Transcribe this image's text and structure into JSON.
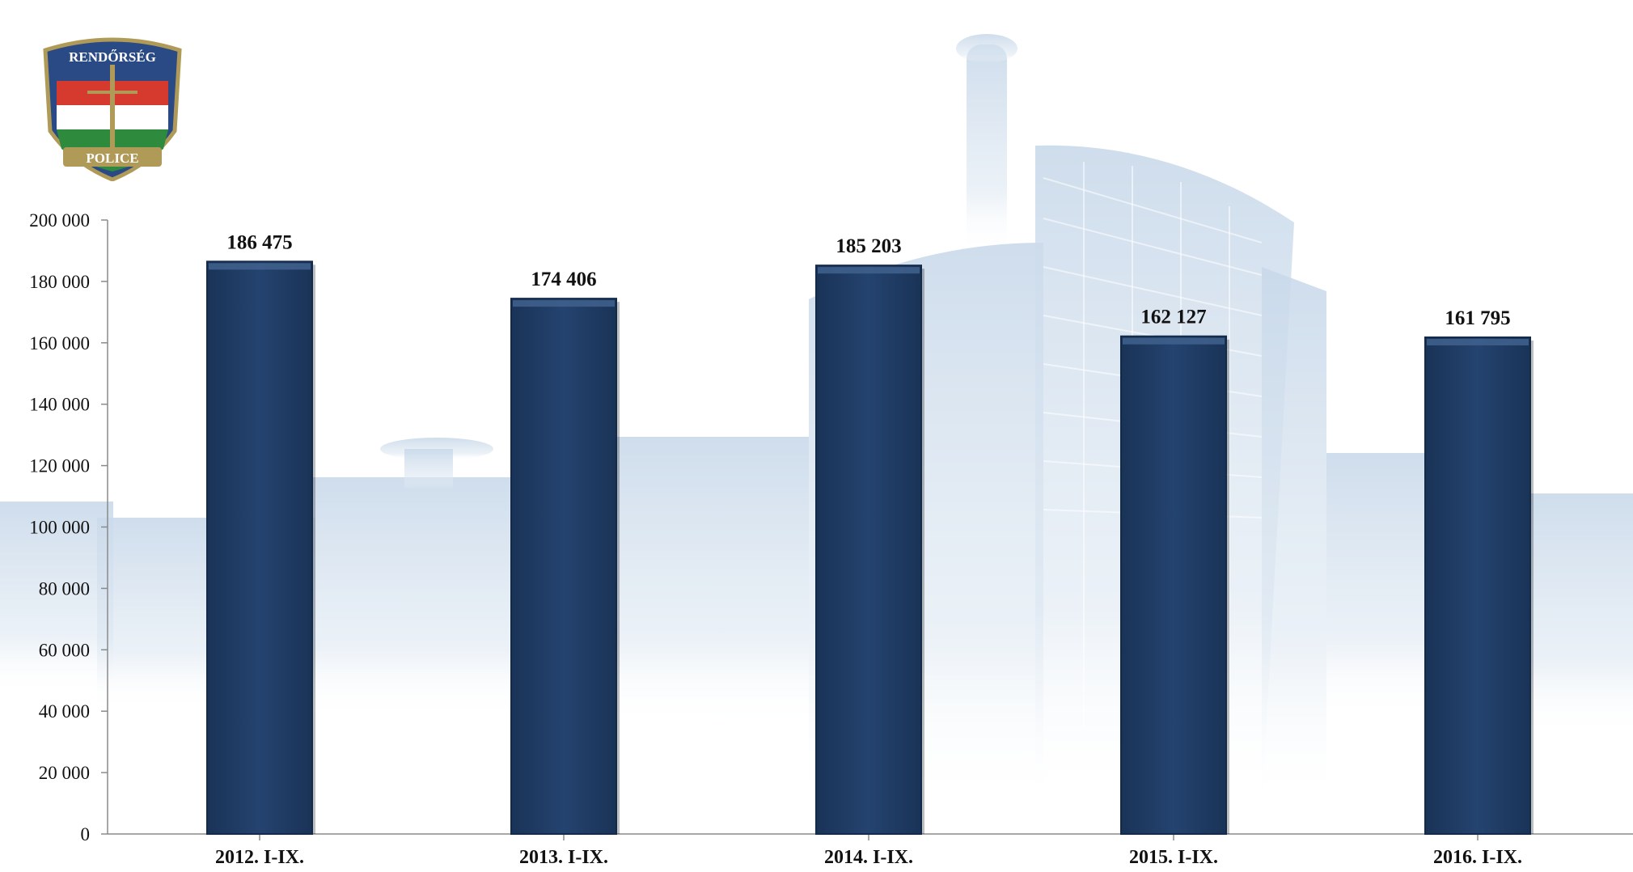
{
  "logo": {
    "top_text": "RENDŐRSÉG",
    "bottom_text": "POLICE"
  },
  "colors": {
    "bar": "#1f3b63",
    "bar_highlight": "#3f5f8c",
    "axis": "#8a8a8a",
    "background_tint": "#c9d9ea"
  },
  "chart_data": {
    "type": "bar",
    "title": "",
    "xlabel": "",
    "ylabel": "",
    "categories": [
      "2012. I-IX.",
      "2013. I-IX.",
      "2014. I-IX.",
      "2015. I-IX.",
      "2016. I-IX."
    ],
    "values": [
      186475,
      174406,
      185203,
      162127,
      161795
    ],
    "value_labels": [
      "186 475",
      "174 406",
      "185 203",
      "162 127",
      "161 795"
    ],
    "ylim": [
      0,
      200000
    ],
    "yticks": [
      0,
      20000,
      40000,
      60000,
      80000,
      100000,
      120000,
      140000,
      160000,
      180000,
      200000
    ],
    "ytick_labels": [
      "0",
      "20 000",
      "40 000",
      "60 000",
      "80 000",
      "100 000",
      "120 000",
      "140 000",
      "160 000",
      "180 000",
      "200 000"
    ],
    "grid": false,
    "legend": "none"
  }
}
